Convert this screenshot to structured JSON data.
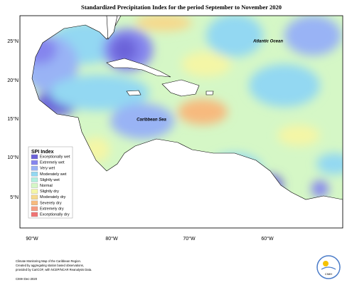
{
  "title": "Standardized Precipitation Index for the period September to November 2020",
  "map": {
    "lat_labels": [
      "25°N",
      "20°N",
      "15°N",
      "10°N",
      "5°N"
    ],
    "lon_labels": [
      "90°W",
      "80°W",
      "70°W",
      "60°W"
    ],
    "place_labels": [
      "Atlantic Ocean",
      "Caribbean Sea"
    ]
  },
  "legend": {
    "title": "SPI Index",
    "items": [
      {
        "label": "Exceptionally wet",
        "color": "#6c63d9"
      },
      {
        "label": "Extremely wet",
        "color": "#8585ee"
      },
      {
        "label": "Very wet",
        "color": "#99b3f5"
      },
      {
        "label": "Moderately wet",
        "color": "#93d8f2"
      },
      {
        "label": "Slightly wet",
        "color": "#b0efe0"
      },
      {
        "label": "Normal",
        "color": "#d5f7c6"
      },
      {
        "label": "Slightly dry",
        "color": "#f4f6a6"
      },
      {
        "label": "Moderately dry",
        "color": "#f6d98c"
      },
      {
        "label": "Severely dry",
        "color": "#f7ba7e"
      },
      {
        "label": "Extremely dry",
        "color": "#f59c82"
      },
      {
        "label": "Exceptionally dry",
        "color": "#f07474"
      }
    ]
  },
  "footer": {
    "lines": [
      "Climate Monitoring Map of the Caribbean Region.",
      "Created by aggregating station based observations,",
      "provided by CariCOF, with NCEP/NCAR Reanalysis Data."
    ],
    "credit": "CIMH Dec-2020",
    "logo": "CIMH"
  }
}
